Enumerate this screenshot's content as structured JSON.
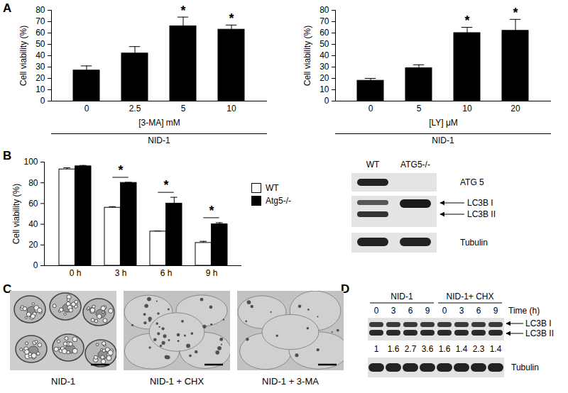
{
  "chart_data": [
    {
      "type": "bar",
      "categories": [
        0,
        2.5,
        5,
        10
      ],
      "values": [
        27,
        42,
        66,
        63
      ],
      "errors": [
        4,
        6,
        8,
        4
      ],
      "significance": [
        null,
        null,
        "*",
        "*"
      ],
      "color": "#000000",
      "x_label": "[3-MA] mM",
      "y_label": "Cell viability (%)",
      "annotation": "NID-1",
      "ylim": [
        0,
        80
      ],
      "yticks": [
        0,
        10,
        20,
        30,
        40,
        50,
        60,
        70,
        80
      ]
    },
    {
      "type": "bar",
      "categories": [
        0,
        5,
        10,
        20
      ],
      "values": [
        18,
        29,
        60,
        62
      ],
      "errors": [
        2,
        3,
        5,
        10
      ],
      "significance": [
        null,
        null,
        "*",
        "*"
      ],
      "color": "#000000",
      "x_label": "[LY] μM",
      "y_label": "Cell viability (%)",
      "annotation": "NID-1",
      "ylim": [
        0,
        80
      ],
      "yticks": [
        0,
        10,
        20,
        30,
        40,
        50,
        60,
        70,
        80
      ]
    },
    {
      "type": "bar",
      "categories": [
        "0 h",
        "3 h",
        "6 h",
        "9 h"
      ],
      "series": [
        {
          "name": "WT",
          "color": "#ffffff",
          "values": [
            93,
            56,
            33,
            22
          ],
          "errors": [
            1.5,
            1,
            0.5,
            1.5
          ]
        },
        {
          "name": "Atg5-/-",
          "color": "#000000",
          "values": [
            96,
            80,
            60,
            40
          ],
          "errors": [
            0.8,
            0.5,
            6,
            1.5
          ]
        }
      ],
      "significance": [
        null,
        "*",
        "*",
        "*"
      ],
      "y_label": "Cell viability (%)",
      "ylim": [
        0,
        100
      ],
      "yticks": [
        0,
        20,
        40,
        60,
        80,
        100
      ],
      "legend": "right"
    }
  ],
  "panel_labels": [
    "A",
    "B",
    "C",
    "D"
  ],
  "blot_b": {
    "lanes": [
      "WT",
      "ATG5-/-"
    ],
    "bands": [
      "ATG 5",
      "LC3B I",
      "LC3B II",
      "Tubulin"
    ]
  },
  "images_c": {
    "captions": [
      "NID-1",
      "NID-1 + CHX",
      "NID-1 + 3-MA"
    ]
  },
  "blot_d": {
    "groups": [
      {
        "label": "NID-1",
        "times": [
          0,
          3,
          6,
          9
        ]
      },
      {
        "label": "NID-1+ CHX",
        "times": [
          0,
          3,
          6,
          9
        ]
      }
    ],
    "time_label": "Time (h)",
    "bands": [
      "LC3B I",
      "LC3B II"
    ],
    "ratios": [
      1,
      1.6,
      2.7,
      3.6,
      1.6,
      1.4,
      2.3,
      1.4
    ],
    "loading_control": "Tubulin"
  }
}
